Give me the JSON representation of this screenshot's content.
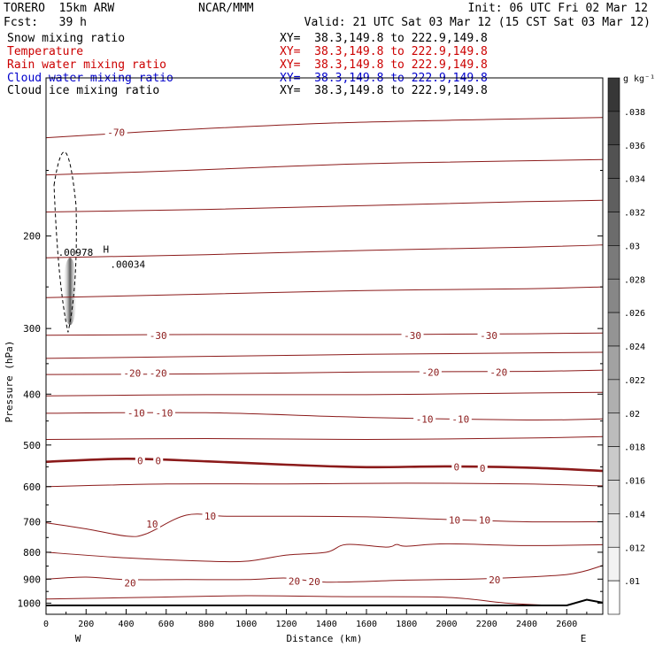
{
  "header": {
    "model": "TORERO  15km ARW",
    "org": "NCAR/MMM",
    "init": "Init: 06 UTC Fri 02 Mar 12",
    "fcst": "Fcst:   39 h",
    "valid": "Valid: 21 UTC Sat 03 Mar 12 (15 CST Sat 03 Mar 12)"
  },
  "fields": [
    {
      "name": "Snow mixing ratio",
      "xy": "XY=  38.3,149.8 to 222.9,149.8",
      "color": "#000000"
    },
    {
      "name": "Temperature",
      "xy": "XY=  38.3,149.8 to 222.9,149.8",
      "color": "#cc0000"
    },
    {
      "name": "Rain water mixing ratio",
      "xy": "XY=  38.3,149.8 to 222.9,149.8",
      "color": "#cc0000"
    },
    {
      "name": "Cloud water mixing ratio",
      "xy": "XY=  38.3,149.8 to 222.9,149.8",
      "color": "#0000cc"
    },
    {
      "name": "Cloud ice mixing ratio",
      "xy": "XY=  38.3,149.8 to 222.9,149.8",
      "color": "#000000"
    }
  ],
  "chart_data": {
    "type": "contour",
    "xlabel": "Distance (km)",
    "ylabel": "Pressure (hPa)",
    "xlim": [
      0,
      2780
    ],
    "ylim": [
      1050,
      100
    ],
    "yscale": "log",
    "x_ticks": [
      0,
      200,
      400,
      600,
      800,
      1000,
      1200,
      1400,
      1600,
      1800,
      2000,
      2200,
      2400,
      2600
    ],
    "y_ticks": [
      200,
      300,
      400,
      500,
      600,
      700,
      800,
      900,
      1000
    ],
    "y_tick_labels": [
      "200",
      "300",
      "400",
      "500",
      "600",
      "700",
      "800",
      "900",
      "1000"
    ],
    "direction_labels": {
      "left": "W",
      "right": "E"
    },
    "colorbar": {
      "unit": "g kg⁻¹",
      "labels": [
        ".01",
        ".012",
        ".014",
        ".016",
        ".018",
        ".02",
        ".022",
        ".024",
        ".026",
        ".028",
        ".03",
        ".032",
        ".034",
        ".036",
        ".038"
      ]
    },
    "cloud_annotations": [
      {
        "text": ".00978",
        "x": 60,
        "p": 218
      },
      {
        "text": "H",
        "x": 285,
        "p": 215
      },
      {
        "text": ".00034",
        "x": 320,
        "p": 230
      }
    ],
    "temperature_labels": [
      {
        "text": "-70",
        "x": 350,
        "p": 127
      },
      {
        "text": "-30",
        "x": 560,
        "p": 309
      },
      {
        "text": "-30",
        "x": 1830,
        "p": 309
      },
      {
        "text": "-30",
        "x": 2210,
        "p": 309
      },
      {
        "text": "-20",
        "x": 430,
        "p": 365
      },
      {
        "text": "-20",
        "x": 560,
        "p": 365
      },
      {
        "text": "-20",
        "x": 1920,
        "p": 363
      },
      {
        "text": "-20",
        "x": 2260,
        "p": 363
      },
      {
        "text": "-10",
        "x": 450,
        "p": 434
      },
      {
        "text": "-10",
        "x": 590,
        "p": 434
      },
      {
        "text": "-10",
        "x": 1890,
        "p": 446
      },
      {
        "text": "-10",
        "x": 2070,
        "p": 446
      },
      {
        "text": "0",
        "x": 470,
        "p": 536
      },
      {
        "text": "0",
        "x": 560,
        "p": 536
      },
      {
        "text": "0",
        "x": 2050,
        "p": 550
      },
      {
        "text": "0",
        "x": 2180,
        "p": 553
      },
      {
        "text": "10",
        "x": 530,
        "p": 707
      },
      {
        "text": "10",
        "x": 820,
        "p": 682
      },
      {
        "text": "10",
        "x": 2040,
        "p": 694
      },
      {
        "text": "10",
        "x": 2190,
        "p": 694
      },
      {
        "text": "20",
        "x": 420,
        "p": 915
      },
      {
        "text": "20",
        "x": 1240,
        "p": 907
      },
      {
        "text": "20",
        "x": 1340,
        "p": 910
      },
      {
        "text": "20",
        "x": 2240,
        "p": 902
      }
    ],
    "isotherms": [
      {
        "label": "-70",
        "points": [
          [
            0,
            130
          ],
          [
            600,
            126
          ],
          [
            1400,
            122
          ],
          [
            2200,
            120
          ],
          [
            2780,
            119
          ]
        ]
      },
      {
        "label": "-60",
        "points": [
          [
            0,
            153
          ],
          [
            700,
            150
          ],
          [
            1500,
            146
          ],
          [
            2300,
            144
          ],
          [
            2780,
            143
          ]
        ]
      },
      {
        "label": "-50",
        "points": [
          [
            0,
            180
          ],
          [
            800,
            178
          ],
          [
            1600,
            175
          ],
          [
            2400,
            172
          ],
          [
            2780,
            171
          ]
        ]
      },
      {
        "label": "-40",
        "points": [
          [
            0,
            220
          ],
          [
            800,
            217
          ],
          [
            1600,
            213
          ],
          [
            2400,
            210
          ],
          [
            2780,
            208
          ]
        ]
      },
      {
        "label": "-35",
        "points": [
          [
            0,
            262
          ],
          [
            800,
            258
          ],
          [
            1600,
            254
          ],
          [
            2400,
            252
          ],
          [
            2780,
            250
          ]
        ]
      },
      {
        "label": "-30",
        "points": [
          [
            0,
            309
          ],
          [
            800,
            308
          ],
          [
            1600,
            308
          ],
          [
            2400,
            307
          ],
          [
            2780,
            306
          ]
        ]
      },
      {
        "label": "-25",
        "points": [
          [
            0,
            342
          ],
          [
            800,
            339
          ],
          [
            1600,
            336
          ],
          [
            2400,
            334
          ],
          [
            2780,
            333
          ]
        ]
      },
      {
        "label": "-20",
        "points": [
          [
            0,
            367
          ],
          [
            800,
            366
          ],
          [
            1600,
            363
          ],
          [
            2400,
            362
          ],
          [
            2780,
            360
          ]
        ]
      },
      {
        "label": "-15",
        "points": [
          [
            0,
            403
          ],
          [
            800,
            401
          ],
          [
            1600,
            401
          ],
          [
            2400,
            398
          ],
          [
            2780,
            397
          ]
        ]
      },
      {
        "label": "-10",
        "points": [
          [
            0,
            435
          ],
          [
            800,
            434
          ],
          [
            1600,
            443
          ],
          [
            2400,
            448
          ],
          [
            2780,
            446
          ]
        ]
      },
      {
        "label": "-5",
        "points": [
          [
            0,
            488
          ],
          [
            800,
            486
          ],
          [
            1600,
            488
          ],
          [
            2400,
            485
          ],
          [
            2780,
            482
          ]
        ]
      },
      {
        "label": "0",
        "points": [
          [
            0,
            538
          ],
          [
            400,
            531
          ],
          [
            800,
            537
          ],
          [
            1200,
            545
          ],
          [
            1600,
            551
          ],
          [
            2000,
            549
          ],
          [
            2400,
            552
          ],
          [
            2780,
            560
          ]
        ]
      },
      {
        "label": "5",
        "points": [
          [
            0,
            600
          ],
          [
            600,
            593
          ],
          [
            1200,
            593
          ],
          [
            1800,
            591
          ],
          [
            2400,
            593
          ],
          [
            2780,
            598
          ]
        ]
      },
      {
        "label": "10",
        "points": [
          [
            0,
            703
          ],
          [
            200,
            722
          ],
          [
            400,
            745
          ],
          [
            500,
            738
          ],
          [
            700,
            680
          ],
          [
            900,
            683
          ],
          [
            1200,
            683
          ],
          [
            1600,
            685
          ],
          [
            2000,
            693
          ],
          [
            2400,
            700
          ],
          [
            2780,
            700
          ]
        ]
      },
      {
        "label": "15",
        "points": [
          [
            0,
            800
          ],
          [
            400,
            820
          ],
          [
            800,
            832
          ],
          [
            1000,
            832
          ],
          [
            1200,
            810
          ],
          [
            1400,
            800
          ],
          [
            1500,
            773
          ],
          [
            1700,
            782
          ],
          [
            1750,
            773
          ],
          [
            1800,
            779
          ],
          [
            2000,
            771
          ],
          [
            2400,
            777
          ],
          [
            2780,
            774
          ]
        ]
      },
      {
        "label": "20",
        "points": [
          [
            0,
            900
          ],
          [
            200,
            892
          ],
          [
            400,
            902
          ],
          [
            700,
            902
          ],
          [
            1000,
            902
          ],
          [
            1200,
            896
          ],
          [
            1400,
            912
          ],
          [
            1800,
            904
          ],
          [
            2200,
            898
          ],
          [
            2600,
            882
          ],
          [
            2780,
            848
          ]
        ]
      },
      {
        "label": "25",
        "points": [
          [
            0,
            982
          ],
          [
            500,
            975
          ],
          [
            1000,
            968
          ],
          [
            1500,
            972
          ],
          [
            2000,
            975
          ],
          [
            2300,
            1000
          ],
          [
            2500,
            1009
          ]
        ]
      }
    ],
    "terrain": [
      [
        0,
        1010
      ],
      [
        2600,
        1010
      ],
      [
        2700,
        985
      ],
      [
        2780,
        998
      ]
    ]
  }
}
